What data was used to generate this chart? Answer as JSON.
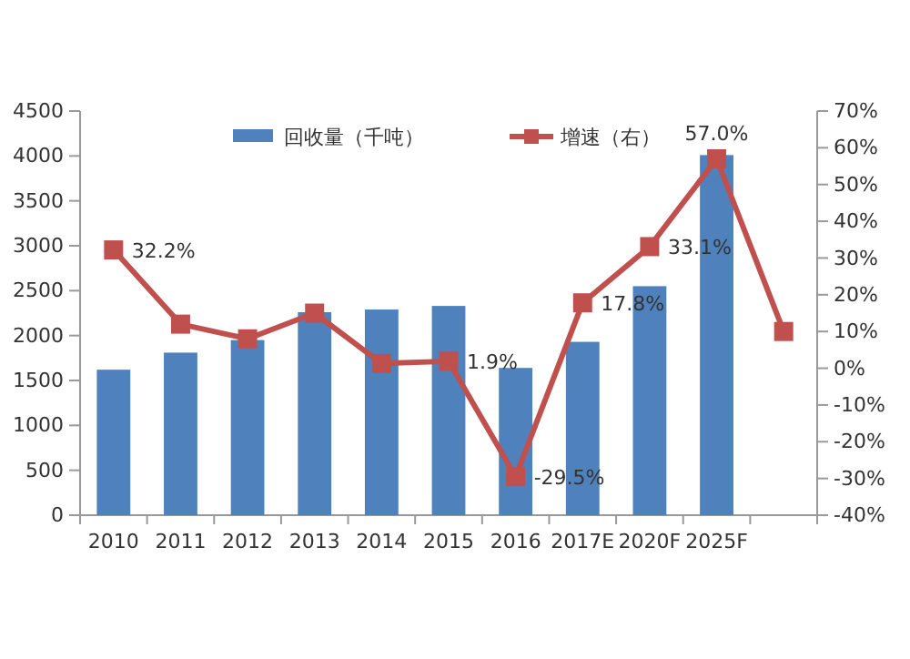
{
  "chart_data": {
    "type": "bar",
    "categories": [
      "2010",
      "2011",
      "2012",
      "2013",
      "2014",
      "2015",
      "2016",
      "2017E",
      "2020F",
      "2025F",
      null
    ],
    "series": [
      {
        "name": "回收量（千吨）",
        "color": "#4f81bd",
        "values": [
          1620,
          1810,
          1950,
          2260,
          2290,
          2330,
          1640,
          1930,
          2550,
          4010,
          null
        ]
      },
      {
        "name": "增速（右）",
        "type": "line",
        "axis": "y2",
        "color": "#c0504d",
        "marker": "square",
        "values": [
          32.2,
          12,
          8,
          15,
          1.3,
          1.9,
          -29.5,
          17.8,
          33.1,
          57.0,
          10
        ],
        "value_labels": [
          "32.2%",
          null,
          null,
          null,
          null,
          "1.9%",
          "-29.5%",
          "17.8%",
          "33.1%",
          "57.0%",
          null
        ]
      }
    ],
    "ylim": [
      0,
      4500
    ],
    "yticks": [
      0,
      500,
      1000,
      1500,
      2000,
      2500,
      3000,
      3500,
      4000,
      4500
    ],
    "y2lim": [
      -40,
      70
    ],
    "y2ticks": [
      {
        "value": -40,
        "label": "-40%"
      },
      {
        "value": -30,
        "label": "-30%"
      },
      {
        "value": -20,
        "label": "-20%"
      },
      {
        "value": -10,
        "label": "-10%"
      },
      {
        "value": 0,
        "label": "0%"
      },
      {
        "value": 10,
        "label": "10%"
      },
      {
        "value": 20,
        "label": "20%"
      },
      {
        "value": 30,
        "label": "30%"
      },
      {
        "value": 40,
        "label": "40%"
      },
      {
        "value": 50,
        "label": "50%"
      },
      {
        "value": 60,
        "label": "60%"
      },
      {
        "value": 70,
        "label": "70%"
      }
    ],
    "legend": "top"
  }
}
